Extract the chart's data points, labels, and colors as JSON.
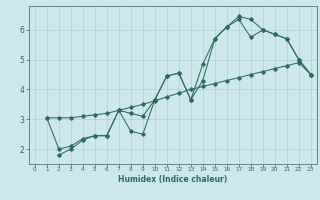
{
  "xlabel": "Humidex (Indice chaleur)",
  "bg_color": "#cce8ec",
  "grid_color": "#b0cfd4",
  "line_color": "#2d6b5e",
  "spine_color": "#4a7a72",
  "xlim": [
    -0.5,
    23.5
  ],
  "ylim": [
    1.5,
    6.8
  ],
  "xticks": [
    0,
    1,
    2,
    3,
    4,
    5,
    6,
    7,
    8,
    9,
    10,
    11,
    12,
    13,
    14,
    15,
    16,
    17,
    18,
    19,
    20,
    21,
    22,
    23
  ],
  "yticks": [
    2,
    3,
    4,
    5,
    6
  ],
  "line1": {
    "x": [
      1,
      2,
      3,
      4,
      5,
      6,
      7,
      8,
      9,
      10,
      11,
      12,
      13,
      14,
      15,
      16,
      17,
      18,
      19,
      20,
      21,
      22,
      23
    ],
    "y": [
      3.05,
      3.05,
      3.05,
      3.1,
      3.15,
      3.2,
      3.3,
      3.4,
      3.5,
      3.62,
      3.75,
      3.88,
      4.0,
      4.1,
      4.2,
      4.3,
      4.4,
      4.5,
      4.6,
      4.7,
      4.8,
      4.9,
      4.5
    ]
  },
  "line2": {
    "x": [
      2,
      3,
      4,
      5,
      6,
      7,
      8,
      9,
      10,
      11,
      12,
      13,
      14,
      15,
      16,
      17,
      18,
      19,
      20,
      21,
      22,
      23
    ],
    "y": [
      1.8,
      2.0,
      2.3,
      2.45,
      2.45,
      3.3,
      2.6,
      2.5,
      3.65,
      4.45,
      4.55,
      3.65,
      4.85,
      5.7,
      6.1,
      6.45,
      6.35,
      6.0,
      5.85,
      5.7,
      5.0,
      4.5
    ]
  },
  "line3": {
    "x": [
      1,
      2,
      3,
      4,
      5,
      6,
      7,
      8,
      9,
      10,
      11,
      12,
      13,
      14,
      15,
      16,
      17,
      18,
      19,
      20,
      21,
      22,
      23
    ],
    "y": [
      3.05,
      2.0,
      2.1,
      2.35,
      2.45,
      2.45,
      3.3,
      3.2,
      3.1,
      3.65,
      4.45,
      4.55,
      3.65,
      4.3,
      5.7,
      6.1,
      6.35,
      5.75,
      6.0,
      5.85,
      5.7,
      5.0,
      4.5
    ]
  }
}
